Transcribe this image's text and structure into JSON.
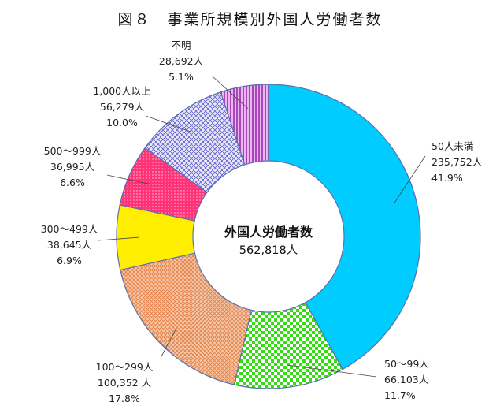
{
  "title": "図８　事業所規模別外国人労働者数",
  "center": {
    "line1": "外国人労働者数",
    "line2": "562,818人"
  },
  "chart_data": {
    "type": "donut",
    "title": "図８　事業所規模別外国人労働者数",
    "total": 562818,
    "series": [
      {
        "name": "50人未満",
        "value_label": "235,752人",
        "percent_label": "41.9%",
        "value": 235752,
        "percent": 41.9,
        "color": "#00ccff",
        "pattern": "solid"
      },
      {
        "name": "50～99人",
        "value_label": "66,103人",
        "percent_label": "11.7%",
        "value": 66103,
        "percent": 11.7,
        "color": "#33dd11",
        "pattern": "checker"
      },
      {
        "name": "100～299人",
        "value_label": "100,352 人",
        "percent_label": "17.8%",
        "value": 100352,
        "percent": 17.8,
        "color": "#ee9966",
        "pattern": "crosshatch"
      },
      {
        "name": "300～499人",
        "value_label": "38,645人",
        "percent_label": "6.9%",
        "value": 38645,
        "percent": 6.9,
        "color": "#ffee00",
        "pattern": "solid"
      },
      {
        "name": "500～999人",
        "value_label": "36,995人",
        "percent_label": "6.6%",
        "value": 36995,
        "percent": 6.6,
        "color": "#ff3377",
        "pattern": "dots"
      },
      {
        "name": "1,000人以上",
        "value_label": "56,279人",
        "percent_label": "10.0%",
        "value": 56279,
        "percent": 10.0,
        "color": "#6666cc",
        "pattern": "grid"
      },
      {
        "name": "不明",
        "value_label": "28,692人",
        "percent_label": "5.1%",
        "value": 28692,
        "percent": 5.1,
        "color": "#bb55cc",
        "pattern": "vlines"
      }
    ]
  }
}
